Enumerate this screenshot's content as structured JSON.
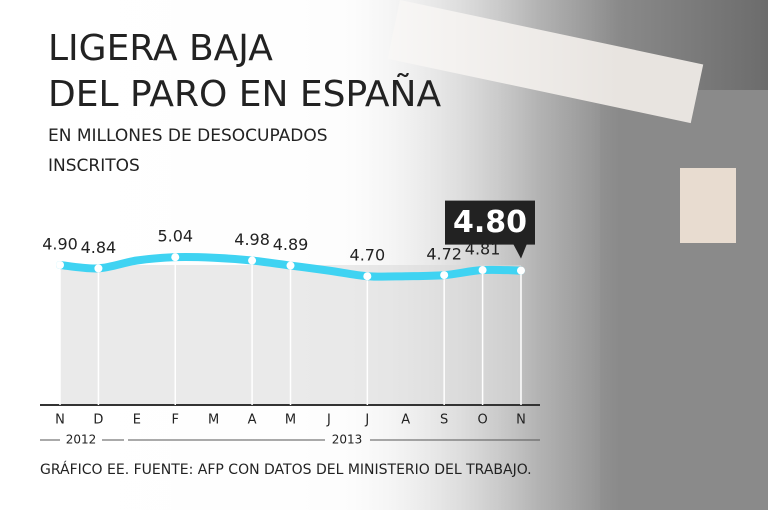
{
  "chart_data": {
    "type": "line",
    "title": [
      "LIGERA BAJA",
      "DEL PARO EN ESPAÑA"
    ],
    "subtitle": [
      "EN MILLONES DE DESOCUPADOS",
      "INSCRITOS"
    ],
    "categories": [
      "N",
      "D",
      "E",
      "F",
      "M",
      "A",
      "M",
      "J",
      "J",
      "A",
      "S",
      "O",
      "N"
    ],
    "values": [
      4.9,
      4.84,
      4.98,
      5.04,
      5.03,
      4.98,
      4.89,
      4.8,
      4.7,
      4.7,
      4.72,
      4.81,
      4.8
    ],
    "value_labels": [
      "4.90",
      "4.84",
      null,
      "5.04",
      null,
      "4.98",
      "4.89",
      null,
      "4.70",
      null,
      "4.72",
      "4.81",
      "4.80"
    ],
    "color": "#3fd3f2",
    "ylim": [
      2.4,
      5.3
    ],
    "years": [
      "2012",
      "2013"
    ],
    "source": "GRÁFICO EE. FUENTE: AFP CON DATOS DEL MINISTERIO DEL TRABAJO."
  }
}
